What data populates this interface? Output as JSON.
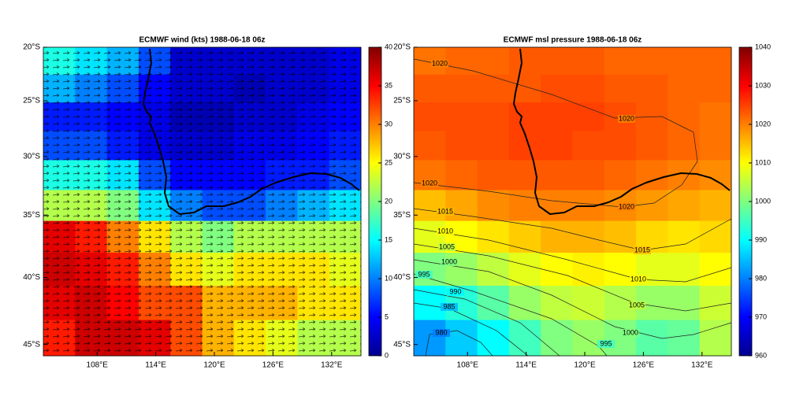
{
  "chart_data": [
    {
      "type": "heatmap",
      "title": "ECMWF wind (kts)  1988-06-18 06z",
      "projection": "mercator",
      "colormap": "jet",
      "xlim": [
        102.5,
        135
      ],
      "xticks": [
        {
          "value": 108,
          "label": "108°E"
        },
        {
          "value": 114,
          "label": "114°E"
        },
        {
          "value": 120,
          "label": "120°E"
        },
        {
          "value": 126,
          "label": "126°E"
        },
        {
          "value": 132,
          "label": "132°E"
        }
      ],
      "ylim": [
        -20,
        -45.8
      ],
      "yticks": [
        {
          "value": -20,
          "label": "20°S"
        },
        {
          "value": -25,
          "label": "25°S"
        },
        {
          "value": -30,
          "label": "30°S"
        },
        {
          "value": -35,
          "label": "35°S"
        },
        {
          "value": -40,
          "label": "40°S"
        },
        {
          "value": -45,
          "label": "45°S"
        }
      ],
      "clim": [
        0,
        40
      ],
      "cticks": [
        0,
        5,
        10,
        15,
        20,
        25,
        30,
        35,
        40
      ],
      "values": [
        [
          16,
          14,
          12,
          8,
          3,
          3,
          3,
          3,
          3,
          4
        ],
        [
          12,
          10,
          8,
          5,
          3,
          3,
          2,
          3,
          3,
          4
        ],
        [
          6,
          6,
          5,
          4,
          2,
          2,
          3,
          3,
          4,
          5
        ],
        [
          8,
          8,
          6,
          4,
          3,
          3,
          4,
          4,
          5,
          6
        ],
        [
          16,
          16,
          14,
          8,
          5,
          5,
          5,
          6,
          6,
          8
        ],
        [
          22,
          22,
          20,
          14,
          10,
          8,
          8,
          10,
          12,
          14
        ],
        [
          36,
          34,
          30,
          26,
          22,
          20,
          22,
          22,
          22,
          22
        ],
        [
          37,
          36,
          34,
          30,
          26,
          24,
          26,
          26,
          26,
          24
        ],
        [
          36,
          37,
          35,
          32,
          32,
          28,
          28,
          28,
          26,
          26
        ],
        [
          34,
          37,
          37,
          36,
          32,
          28,
          26,
          24,
          22,
          22
        ]
      ]
    },
    {
      "type": "heatmap",
      "title": "ECMWF msl pressure  1988-06-18 06z",
      "projection": "mercator",
      "colormap": "jet",
      "xlim": [
        102.5,
        135
      ],
      "xticks": [
        {
          "value": 108,
          "label": "108°E"
        },
        {
          "value": 114,
          "label": "114°E"
        },
        {
          "value": 120,
          "label": "120°E"
        },
        {
          "value": 126,
          "label": "126°E"
        },
        {
          "value": 132,
          "label": "132°E"
        }
      ],
      "ylim": [
        -20,
        -45.8
      ],
      "yticks": [
        {
          "value": -20,
          "label": "20°S"
        },
        {
          "value": -25,
          "label": "25°S"
        },
        {
          "value": -30,
          "label": "30°S"
        },
        {
          "value": -35,
          "label": "35°S"
        },
        {
          "value": -40,
          "label": "40°S"
        },
        {
          "value": -45,
          "label": "45°S"
        }
      ],
      "clim": [
        960,
        1040
      ],
      "cticks": [
        960,
        970,
        980,
        990,
        1000,
        1010,
        1020,
        1030,
        1040
      ],
      "contour_levels": [
        980,
        985,
        990,
        995,
        1000,
        1005,
        1010,
        1015,
        1020
      ],
      "values": [
        [
          1021,
          1022,
          1022,
          1023,
          1023,
          1023,
          1022,
          1022,
          1022,
          1022
        ],
        [
          1023,
          1023,
          1023,
          1023,
          1024,
          1024,
          1023,
          1023,
          1022,
          1022
        ],
        [
          1024,
          1024,
          1024,
          1025,
          1025,
          1025,
          1024,
          1023,
          1022,
          1021
        ],
        [
          1023,
          1024,
          1024,
          1025,
          1025,
          1024,
          1024,
          1023,
          1022,
          1021
        ],
        [
          1021,
          1022,
          1023,
          1023,
          1023,
          1023,
          1022,
          1021,
          1020,
          1019
        ],
        [
          1015,
          1017,
          1019,
          1020,
          1020,
          1020,
          1019,
          1018,
          1017,
          1016
        ],
        [
          1008,
          1010,
          1012,
          1014,
          1016,
          1016,
          1015,
          1013,
          1012,
          1013
        ],
        [
          1000,
          1002,
          1005,
          1008,
          1010,
          1011,
          1010,
          1008,
          1008,
          1010
        ],
        [
          990,
          993,
          997,
          1002,
          1005,
          1006,
          1004,
          1002,
          1002,
          1006
        ],
        [
          982,
          986,
          990,
          995,
          1000,
          1002,
          1000,
          997,
          998,
          1004
        ]
      ]
    }
  ]
}
